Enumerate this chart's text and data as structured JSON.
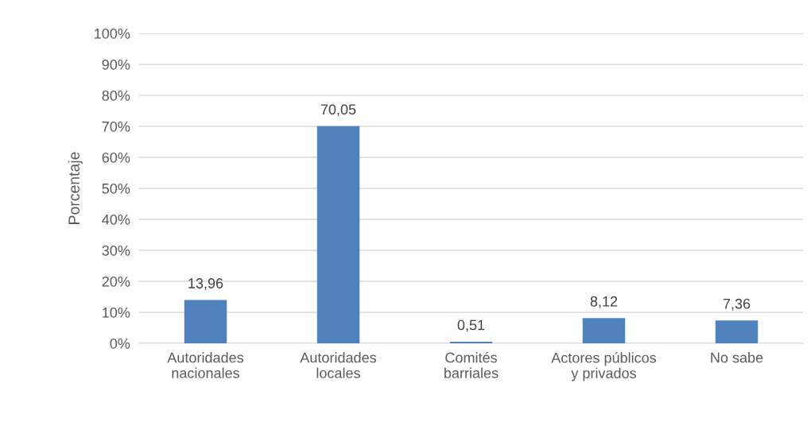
{
  "chart_data": {
    "type": "bar",
    "categories": [
      "Autoridades\nnacionales",
      "Autoridades\nlocales",
      "Comités\nbarriales",
      "Actores públicos\ny privados",
      "No sabe"
    ],
    "values": [
      13.96,
      70.05,
      0.51,
      8.12,
      7.36
    ],
    "value_labels": [
      "13,96",
      "70,05",
      "0,51",
      "8,12",
      "7,36"
    ],
    "color": "#4f81bd",
    "ylabel": "Porcentaje",
    "ylim": [
      0,
      100
    ],
    "yticks": [
      {
        "value": 0,
        "label": "0%"
      },
      {
        "value": 10,
        "label": "10%"
      },
      {
        "value": 20,
        "label": "20%"
      },
      {
        "value": 30,
        "label": "30%"
      },
      {
        "value": 40,
        "label": "40%"
      },
      {
        "value": 50,
        "label": "50%"
      },
      {
        "value": 60,
        "label": "60%"
      },
      {
        "value": 70,
        "label": "70%"
      },
      {
        "value": 80,
        "label": "80%"
      },
      {
        "value": 90,
        "label": "90%"
      },
      {
        "value": 100,
        "label": "100%"
      }
    ],
    "grid": "y"
  }
}
